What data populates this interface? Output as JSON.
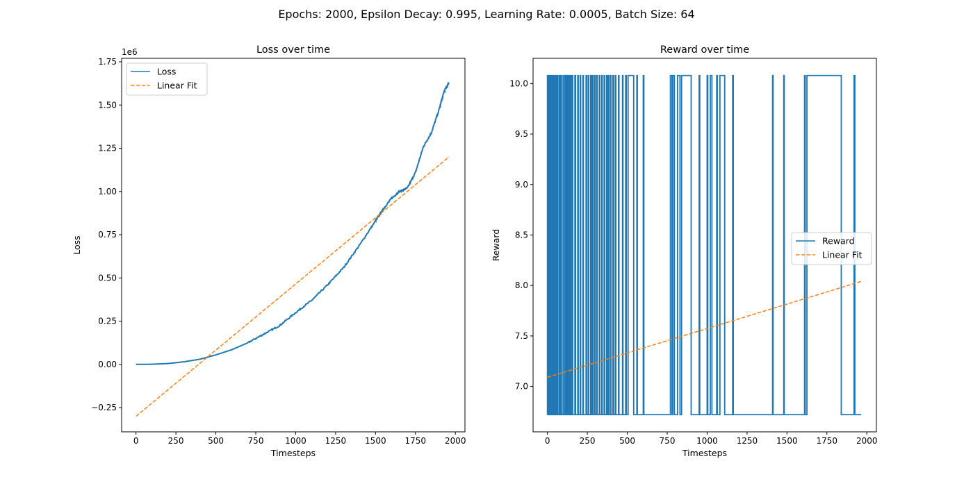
{
  "figure": {
    "suptitle": "Epochs: 2000, Epsilon Decay: 0.995, Learning Rate: 0.0005, Batch Size: 64",
    "colors": {
      "series": "#1f77b4",
      "fit": "#ff7f0e",
      "axes": "#000000",
      "background": "#ffffff"
    }
  },
  "chart_data": [
    {
      "type": "line",
      "title": "Loss over time",
      "xlabel": "Timesteps",
      "ylabel": "Loss",
      "offset_text": "1e6",
      "y_scale_factor": 1000000,
      "xlim": [
        -90,
        2060
      ],
      "ylim": [
        -390000,
        1770000
      ],
      "xticks": [
        0,
        250,
        500,
        750,
        1000,
        1250,
        1500,
        1750,
        2000
      ],
      "xtick_labels": [
        "0",
        "250",
        "500",
        "750",
        "1000",
        "1250",
        "1500",
        "1750",
        "2000"
      ],
      "yticks": [
        -250000,
        0,
        250000,
        500000,
        750000,
        1000000,
        1250000,
        1500000,
        1750000
      ],
      "ytick_labels": [
        "−0.25",
        "0.00",
        "0.25",
        "0.50",
        "0.75",
        "1.00",
        "1.25",
        "1.50",
        "1.75"
      ],
      "grid": false,
      "legend": {
        "position": "upper left",
        "entries": [
          "Loss",
          "Linear Fit"
        ]
      },
      "series": [
        {
          "name": "Loss",
          "style": "solid",
          "x": [
            0,
            100,
            200,
            300,
            400,
            500,
            600,
            700,
            800,
            900,
            1000,
            1100,
            1200,
            1300,
            1400,
            1500,
            1550,
            1600,
            1650,
            1700,
            1750,
            1800,
            1850,
            1900,
            1930,
            1960
          ],
          "y": [
            0,
            1000,
            5000,
            15000,
            30000,
            55000,
            85000,
            125000,
            175000,
            225000,
            300000,
            370000,
            460000,
            560000,
            690000,
            830000,
            900000,
            960000,
            1000000,
            1020000,
            1110000,
            1260000,
            1340000,
            1480000,
            1580000,
            1630000
          ]
        },
        {
          "name": "Linear Fit",
          "style": "dashed",
          "x": [
            0,
            1960
          ],
          "y": [
            -300000,
            1200000
          ]
        }
      ]
    },
    {
      "type": "line",
      "title": "Reward over time",
      "xlabel": "Timesteps",
      "ylabel": "Reward",
      "xlim": [
        -90,
        2060
      ],
      "ylim": [
        6.55,
        10.25
      ],
      "xticks": [
        0,
        250,
        500,
        750,
        1000,
        1250,
        1500,
        1750,
        2000
      ],
      "xtick_labels": [
        "0",
        "250",
        "500",
        "750",
        "1000",
        "1250",
        "1500",
        "1750",
        "2000"
      ],
      "yticks": [
        7.0,
        7.5,
        8.0,
        8.5,
        9.0,
        9.5,
        10.0
      ],
      "ytick_labels": [
        "7.0",
        "7.5",
        "8.0",
        "8.5",
        "9.0",
        "9.5",
        "10.0"
      ],
      "grid": false,
      "legend": {
        "position": "center right",
        "entries": [
          "Reward",
          "Linear Fit"
        ]
      },
      "series": [
        {
          "name": "Reward",
          "style": "step",
          "levels": [
            6.72,
            10.08
          ],
          "high_intervals": [
            [
              0,
              3
            ],
            [
              8,
              12
            ],
            [
              20,
              24
            ],
            [
              30,
              33
            ],
            [
              40,
              44
            ],
            [
              52,
              55
            ],
            [
              62,
              66
            ],
            [
              75,
              78
            ],
            [
              85,
              88
            ],
            [
              98,
              101
            ],
            [
              110,
              113
            ],
            [
              120,
              124
            ],
            [
              132,
              135
            ],
            [
              143,
              147
            ],
            [
              155,
              158
            ],
            [
              172,
              176
            ],
            [
              190,
              193
            ],
            [
              205,
              208
            ],
            [
              222,
              225
            ],
            [
              242,
              245
            ],
            [
              255,
              258
            ],
            [
              270,
              274
            ],
            [
              282,
              285
            ],
            [
              295,
              298
            ],
            [
              308,
              312
            ],
            [
              325,
              328
            ],
            [
              340,
              343
            ],
            [
              355,
              358
            ],
            [
              370,
              374
            ],
            [
              382,
              385
            ],
            [
              395,
              398
            ],
            [
              410,
              414
            ],
            [
              425,
              428
            ],
            [
              445,
              448
            ],
            [
              470,
              473
            ],
            [
              490,
              494
            ],
            [
              505,
              540
            ],
            [
              560,
              563
            ],
            [
              600,
              604
            ],
            [
              770,
              780
            ],
            [
              785,
              795
            ],
            [
              815,
              830
            ],
            [
              840,
              900
            ],
            [
              950,
              954
            ],
            [
              1000,
              1004
            ],
            [
              1020,
              1030
            ],
            [
              1060,
              1064
            ],
            [
              1080,
              1110
            ],
            [
              1160,
              1164
            ],
            [
              1410,
              1413
            ],
            [
              1480,
              1483
            ],
            [
              1610,
              1614
            ],
            [
              1625,
              1840
            ],
            [
              1920,
              1925
            ]
          ],
          "x_end": 1965
        },
        {
          "name": "Linear Fit",
          "style": "dashed",
          "x": [
            0,
            1965
          ],
          "y": [
            7.09,
            8.04
          ]
        }
      ]
    }
  ]
}
